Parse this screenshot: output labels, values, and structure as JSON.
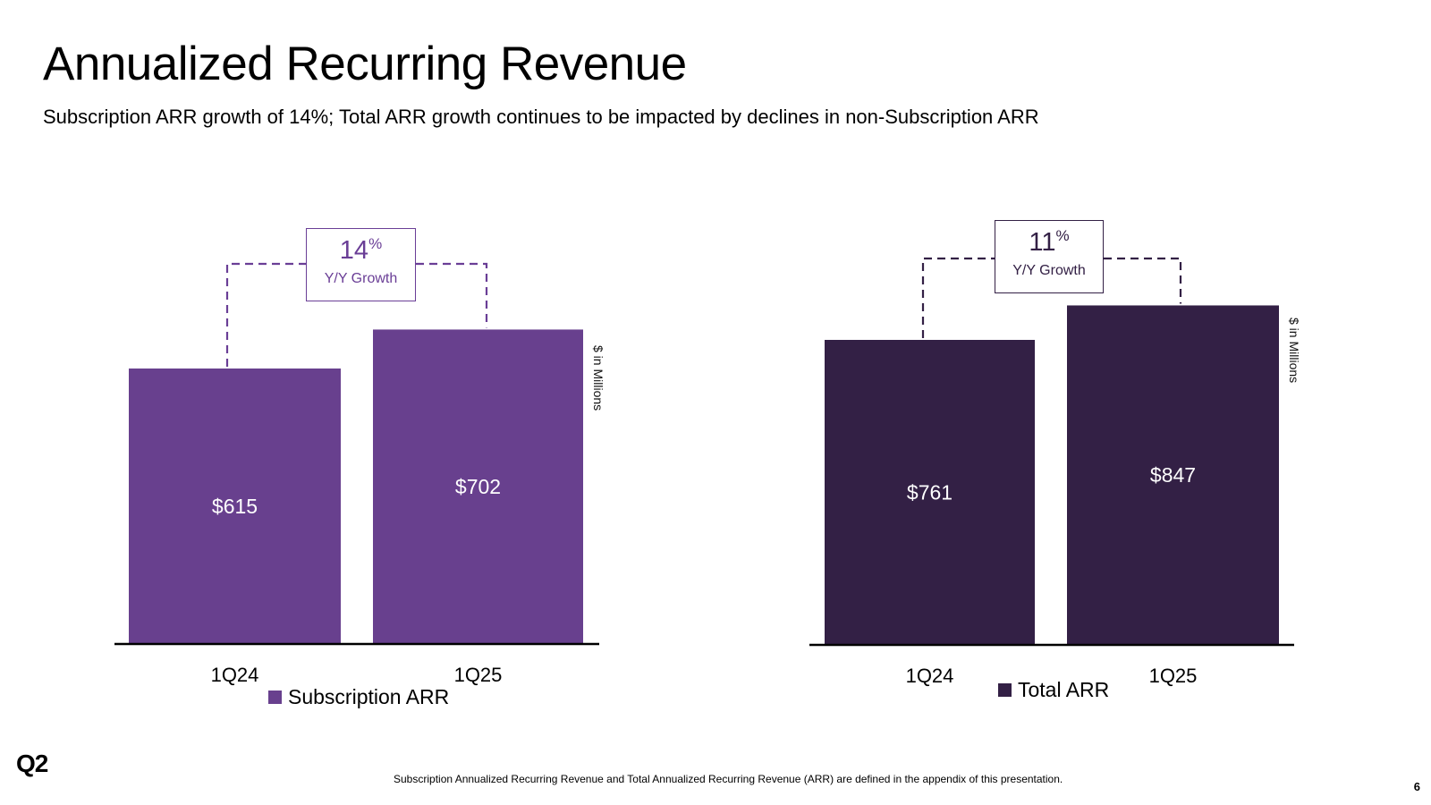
{
  "slide": {
    "title": "Annualized Recurring Revenue",
    "subtitle": "Subscription ARR growth of 14%; Total ARR growth continues to be impacted by declines in non-Subscription ARR",
    "logo_text": "Q2",
    "footnote": "Subscription Annualized Recurring Revenue and Total Annualized Recurring Revenue (ARR) are defined in the appendix of this presentation.",
    "page_number": "6"
  },
  "chart_data": [
    {
      "type": "bar",
      "title": "",
      "categories": [
        "1Q24",
        "1Q25"
      ],
      "series": [
        {
          "name": "Subscription ARR",
          "values": [
            615,
            702
          ]
        }
      ],
      "value_labels": [
        "$615",
        "$702"
      ],
      "unit_label": "$ in Millions",
      "legend": "bottom-center",
      "color": "#68408e",
      "growth": {
        "value": "14",
        "symbol": "%",
        "label": "Y/Y Growth",
        "color": "#6a3e96"
      },
      "ylim": [
        0,
        850
      ]
    },
    {
      "type": "bar",
      "title": "",
      "categories": [
        "1Q24",
        "1Q25"
      ],
      "series": [
        {
          "name": "Total ARR",
          "values": [
            761,
            847
          ]
        }
      ],
      "value_labels": [
        "$761",
        "$847"
      ],
      "unit_label": "$ in Millions",
      "legend": "bottom-center",
      "color": "#332045",
      "growth": {
        "value": "11",
        "symbol": "%",
        "label": "Y/Y Growth",
        "color": "#332045"
      },
      "ylim": [
        0,
        1020
      ]
    }
  ]
}
